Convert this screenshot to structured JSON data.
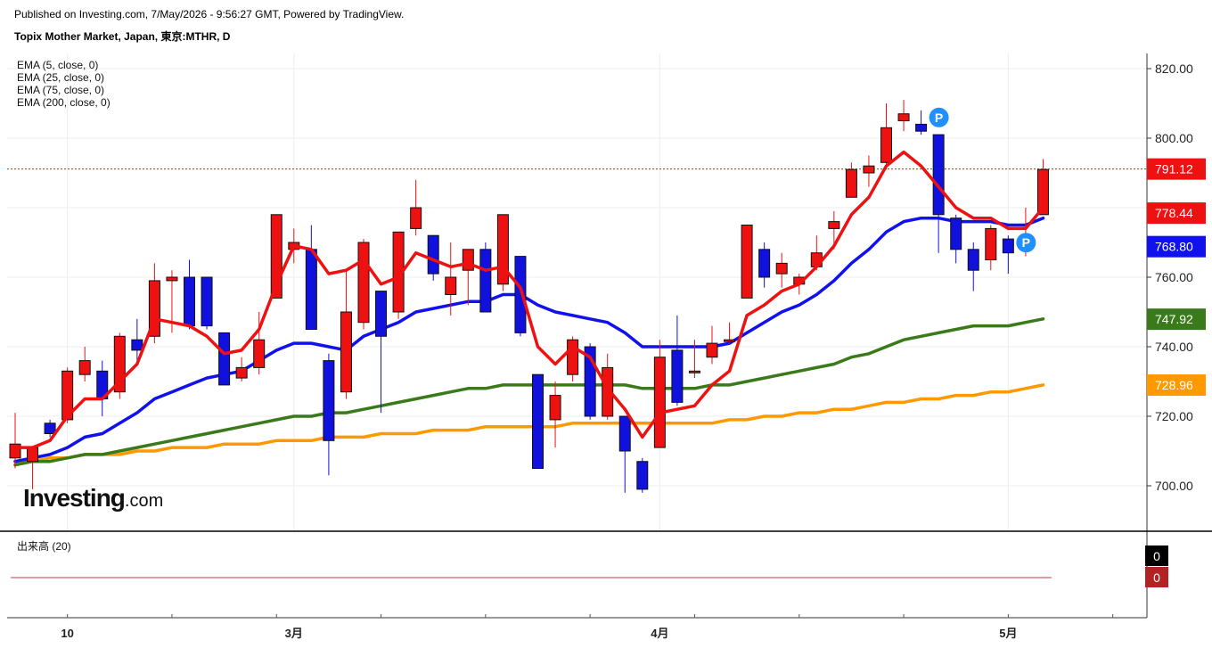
{
  "header": {
    "published": "Published on Investing.com, 7/May/2026 - 9:56:27 GMT, Powered by TradingView.",
    "symbol": "Topix Mother Market, Japan, 東京:MTHR, D"
  },
  "logo": {
    "brand": "Investing",
    "suffix": ".com"
  },
  "volume_panel": {
    "label": "出来高 (20)",
    "badge_top": "0",
    "badge_bottom": "0"
  },
  "colors": {
    "up": "#ee1111",
    "down": "#1111dd",
    "ema5": "#ee1111",
    "ema25": "#1111ee",
    "ema75": "#3a7a1a",
    "ema200": "#ff9900",
    "marker": "#1e90ff"
  },
  "chart_data": {
    "type": "candlestick",
    "legend": [
      "EMA (5, close, 0)",
      "EMA (25, close, 0)",
      "EMA (75, close, 0)",
      "EMA (200, close, 0)"
    ],
    "y_ticks": [
      "820.00",
      "800.00",
      "780.00",
      "760.00",
      "740.00",
      "720.00",
      "700.00"
    ],
    "y_tick_values": [
      820,
      800,
      780,
      760,
      740,
      720,
      700
    ],
    "ylim": [
      690,
      822
    ],
    "x_ticks": [
      "10",
      "3月",
      "4月",
      "5月"
    ],
    "x_tick_index": [
      3,
      16,
      37,
      57
    ],
    "price_badges": [
      {
        "label": "791.12",
        "value": 791.12,
        "color": "#ee1111"
      },
      {
        "label": "778.44",
        "value": 778.44,
        "color": "#ee1111"
      },
      {
        "label": "768.80",
        "value": 768.8,
        "color": "#1111ee"
      },
      {
        "label": "747.92",
        "value": 747.92,
        "color": "#3a7a1a"
      },
      {
        "label": "728.96",
        "value": 728.96,
        "color": "#ff9900"
      }
    ],
    "last_price": 791.12,
    "candles": [
      {
        "o": 708,
        "h": 721,
        "l": 705,
        "c": 712
      },
      {
        "o": 707,
        "h": 711,
        "l": 699,
        "c": 711
      },
      {
        "o": 718,
        "h": 719,
        "l": 714,
        "c": 715
      },
      {
        "o": 719,
        "h": 734,
        "l": 718,
        "c": 733
      },
      {
        "o": 732,
        "h": 740,
        "l": 730,
        "c": 736
      },
      {
        "o": 733,
        "h": 736,
        "l": 720,
        "c": 725
      },
      {
        "o": 727,
        "h": 744,
        "l": 725,
        "c": 743
      },
      {
        "o": 742,
        "h": 748,
        "l": 736,
        "c": 739
      },
      {
        "o": 743,
        "h": 764,
        "l": 741,
        "c": 759
      },
      {
        "o": 759,
        "h": 762,
        "l": 744,
        "c": 760
      },
      {
        "o": 760,
        "h": 765,
        "l": 745,
        "c": 746
      },
      {
        "o": 760,
        "h": 760,
        "l": 745,
        "c": 746
      },
      {
        "o": 744,
        "h": 744,
        "l": 729,
        "c": 729
      },
      {
        "o": 731,
        "h": 737,
        "l": 730,
        "c": 734
      },
      {
        "o": 734,
        "h": 750,
        "l": 732,
        "c": 742
      },
      {
        "o": 754,
        "h": 778,
        "l": 754,
        "c": 778
      },
      {
        "o": 768,
        "h": 774,
        "l": 764,
        "c": 770
      },
      {
        "o": 768,
        "h": 775,
        "l": 745,
        "c": 745
      },
      {
        "o": 736,
        "h": 738,
        "l": 703,
        "c": 713
      },
      {
        "o": 727,
        "h": 762,
        "l": 725,
        "c": 750
      },
      {
        "o": 747,
        "h": 771,
        "l": 745,
        "c": 770
      },
      {
        "o": 756,
        "h": 756,
        "l": 721,
        "c": 743
      },
      {
        "o": 750,
        "h": 773,
        "l": 748,
        "c": 773
      },
      {
        "o": 774,
        "h": 788,
        "l": 772,
        "c": 780
      },
      {
        "o": 772,
        "h": 772,
        "l": 759,
        "c": 761
      },
      {
        "o": 755,
        "h": 770,
        "l": 749,
        "c": 760
      },
      {
        "o": 762,
        "h": 767,
        "l": 752,
        "c": 768
      },
      {
        "o": 768,
        "h": 770,
        "l": 750,
        "c": 750
      },
      {
        "o": 758,
        "h": 778,
        "l": 756,
        "c": 778
      },
      {
        "o": 766,
        "h": 766,
        "l": 743,
        "c": 744
      },
      {
        "o": 732,
        "h": 732,
        "l": 705,
        "c": 705
      },
      {
        "o": 719,
        "h": 730,
        "l": 711,
        "c": 726
      },
      {
        "o": 732,
        "h": 743,
        "l": 730,
        "c": 742
      },
      {
        "o": 740,
        "h": 741,
        "l": 719,
        "c": 720
      },
      {
        "o": 720,
        "h": 738,
        "l": 719,
        "c": 734
      },
      {
        "o": 720,
        "h": 720,
        "l": 698,
        "c": 710
      },
      {
        "o": 707,
        "h": 708,
        "l": 698,
        "c": 699
      },
      {
        "o": 711,
        "h": 742,
        "l": 711,
        "c": 737
      },
      {
        "o": 739,
        "h": 749,
        "l": 723,
        "c": 724
      },
      {
        "o": 733,
        "h": 742,
        "l": 731,
        "c": 733
      },
      {
        "o": 737,
        "h": 746,
        "l": 735,
        "c": 741
      },
      {
        "o": 742,
        "h": 747,
        "l": 741,
        "c": 742
      },
      {
        "o": 754,
        "h": 775,
        "l": 754,
        "c": 775
      },
      {
        "o": 768,
        "h": 770,
        "l": 757,
        "c": 760
      },
      {
        "o": 761,
        "h": 767,
        "l": 757,
        "c": 764
      },
      {
        "o": 758,
        "h": 761,
        "l": 755,
        "c": 760
      },
      {
        "o": 763,
        "h": 772,
        "l": 762,
        "c": 767
      },
      {
        "o": 774,
        "h": 779,
        "l": 768,
        "c": 776
      },
      {
        "o": 783,
        "h": 793,
        "l": 783,
        "c": 791
      },
      {
        "o": 790,
        "h": 795,
        "l": 786,
        "c": 792
      },
      {
        "o": 793,
        "h": 810,
        "l": 791,
        "c": 803
      },
      {
        "o": 805,
        "h": 811,
        "l": 802,
        "c": 807
      },
      {
        "o": 804,
        "h": 808,
        "l": 801,
        "c": 802
      },
      {
        "o": 801,
        "h": 801,
        "l": 767,
        "c": 778
      },
      {
        "o": 777,
        "h": 778,
        "l": 764,
        "c": 768
      },
      {
        "o": 768,
        "h": 770,
        "l": 756,
        "c": 762
      },
      {
        "o": 765,
        "h": 775,
        "l": 762,
        "c": 774
      },
      {
        "o": 771,
        "h": 772,
        "l": 761,
        "c": 767
      },
      {
        "o": 768,
        "h": 780,
        "l": 766,
        "c": 770
      },
      {
        "o": 778,
        "h": 794,
        "l": 778,
        "c": 791
      }
    ],
    "ema5": [
      711,
      711,
      713,
      720,
      725,
      725,
      730,
      735,
      748,
      747,
      746,
      743,
      738,
      739,
      745,
      758,
      769,
      768,
      761,
      762,
      765,
      758,
      760,
      767,
      765,
      763,
      764,
      762,
      763,
      757,
      740,
      735,
      740,
      737,
      728,
      722,
      714,
      721,
      722,
      723,
      729,
      733,
      749,
      752,
      756,
      758,
      763,
      769,
      778,
      783,
      792,
      796,
      792,
      786,
      780,
      777,
      777,
      774,
      774,
      780
    ],
    "ema25": [
      707,
      708,
      709,
      711,
      714,
      715,
      718,
      721,
      725,
      727,
      729,
      731,
      732,
      733,
      736,
      739,
      741,
      741,
      740,
      739,
      743,
      745,
      747,
      750,
      751,
      752,
      753,
      753,
      755,
      755,
      752,
      750,
      749,
      748,
      747,
      744,
      740,
      740,
      740,
      740,
      740,
      741,
      744,
      747,
      750,
      752,
      755,
      759,
      764,
      768,
      773,
      776,
      777,
      777,
      776,
      776,
      776,
      775,
      775,
      777
    ],
    "ema75": [
      706,
      707,
      707,
      708,
      709,
      709,
      710,
      711,
      712,
      713,
      714,
      715,
      716,
      717,
      718,
      719,
      720,
      720,
      721,
      721,
      722,
      723,
      724,
      725,
      726,
      727,
      728,
      728,
      729,
      729,
      729,
      729,
      729,
      729,
      729,
      729,
      728,
      728,
      728,
      728,
      729,
      729,
      730,
      731,
      732,
      733,
      734,
      735,
      737,
      738,
      740,
      742,
      743,
      744,
      745,
      746,
      746,
      746,
      747,
      748
    ],
    "ema200": [
      707,
      707,
      708,
      708,
      709,
      709,
      709,
      710,
      710,
      711,
      711,
      711,
      712,
      712,
      712,
      713,
      713,
      713,
      714,
      714,
      714,
      715,
      715,
      715,
      716,
      716,
      716,
      717,
      717,
      717,
      717,
      717,
      718,
      718,
      718,
      718,
      718,
      718,
      718,
      718,
      718,
      719,
      719,
      720,
      720,
      721,
      721,
      722,
      722,
      723,
      724,
      724,
      725,
      725,
      726,
      726,
      727,
      727,
      728,
      729
    ],
    "markers": [
      {
        "index": 52,
        "label": "P"
      },
      {
        "index": 57,
        "label": "P"
      }
    ]
  }
}
